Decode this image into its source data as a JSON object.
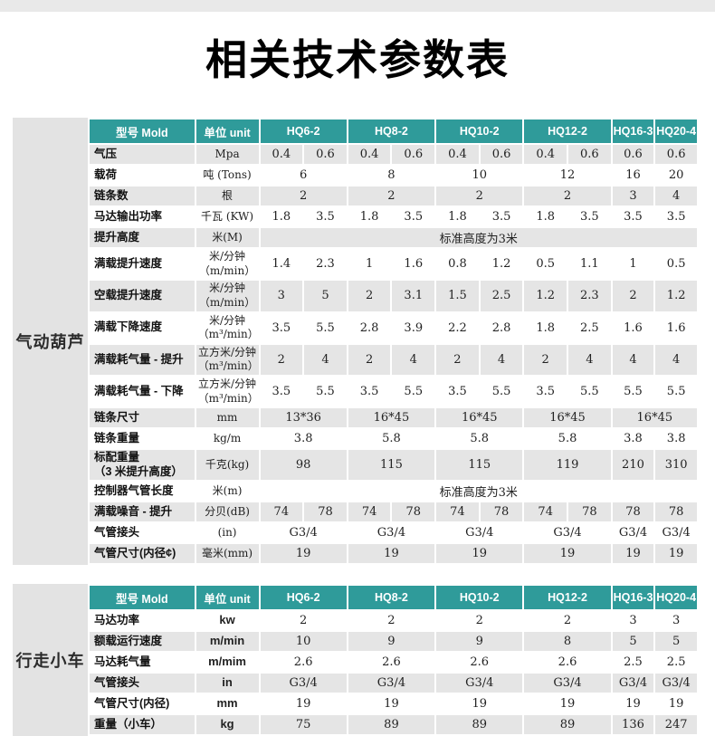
{
  "page": {
    "title": "相关技术参数表"
  },
  "colors": {
    "header_teal": "#2f9b9a",
    "stripe_gray": "#e5e5e5",
    "sidebar_gray": "#e3e3e3",
    "topbar_gray": "#e9e9e9"
  },
  "tables": [
    {
      "category": "气动葫芦",
      "header": {
        "model_col": "型号  Mold",
        "unit_col": "单位 unit",
        "models": [
          "HQ6-2",
          "HQ8-2",
          "HQ10-2",
          "HQ12-2",
          "HQ16-3",
          "HQ20-4"
        ]
      },
      "rows": [
        {
          "label": "气压",
          "unit": "Mpa",
          "cells": [
            {
              "t": "0.4"
            },
            {
              "t": "0.6"
            },
            {
              "t": "0.4"
            },
            {
              "t": "0.6"
            },
            {
              "t": "0.4"
            },
            {
              "t": "0.6"
            },
            {
              "t": "0.4"
            },
            {
              "t": "0.6"
            },
            {
              "t": "0.6"
            },
            {
              "t": "0.6"
            }
          ]
        },
        {
          "label": "载荷",
          "unit": "吨 (Tons)",
          "cells": [
            {
              "t": "6",
              "c": 2
            },
            {
              "t": "8",
              "c": 2
            },
            {
              "t": "10",
              "c": 2
            },
            {
              "t": "12",
              "c": 2
            },
            {
              "t": "16"
            },
            {
              "t": "20"
            }
          ]
        },
        {
          "label": "链条数",
          "unit": "根",
          "cells": [
            {
              "t": "2",
              "c": 2
            },
            {
              "t": "2",
              "c": 2
            },
            {
              "t": "2",
              "c": 2
            },
            {
              "t": "2",
              "c": 2
            },
            {
              "t": "3"
            },
            {
              "t": "4"
            }
          ]
        },
        {
          "label": "马达输出功率",
          "unit": "千瓦 (KW)",
          "cells": [
            {
              "t": "1.8"
            },
            {
              "t": "3.5"
            },
            {
              "t": "1.8"
            },
            {
              "t": "3.5"
            },
            {
              "t": "1.8"
            },
            {
              "t": "3.5"
            },
            {
              "t": "1.8"
            },
            {
              "t": "3.5"
            },
            {
              "t": "3.5"
            },
            {
              "t": "3.5"
            }
          ]
        },
        {
          "label": "提升高度",
          "unit": "米(M)",
          "cells": [
            {
              "t": "标准高度为3米",
              "c": 10
            }
          ]
        },
        {
          "label": "满载提升速度",
          "unit": "米/分钟\n（m/min）",
          "cells": [
            {
              "t": "1.4"
            },
            {
              "t": "2.3"
            },
            {
              "t": "1"
            },
            {
              "t": "1.6"
            },
            {
              "t": "0.8"
            },
            {
              "t": "1.2"
            },
            {
              "t": "0.5"
            },
            {
              "t": "1.1"
            },
            {
              "t": "1"
            },
            {
              "t": "0.5"
            }
          ]
        },
        {
          "label": "空载提升速度",
          "unit": "米/分钟\n（m/min）",
          "cells": [
            {
              "t": "3"
            },
            {
              "t": "5"
            },
            {
              "t": "2"
            },
            {
              "t": "3.1"
            },
            {
              "t": "1.5"
            },
            {
              "t": "2.5"
            },
            {
              "t": "1.2"
            },
            {
              "t": "2.3"
            },
            {
              "t": "2"
            },
            {
              "t": "1.2"
            }
          ]
        },
        {
          "label": "满载下降速度",
          "unit": "米/分钟\n（m³/min）",
          "cells": [
            {
              "t": "3.5"
            },
            {
              "t": "5.5"
            },
            {
              "t": "2.8"
            },
            {
              "t": "3.9"
            },
            {
              "t": "2.2"
            },
            {
              "t": "2.8"
            },
            {
              "t": "1.8"
            },
            {
              "t": "2.5"
            },
            {
              "t": "1.6"
            },
            {
              "t": "1.6"
            }
          ]
        },
        {
          "label": "满载耗气量 - 提升",
          "unit": "立方米/分钟\n（m³/min）",
          "cells": [
            {
              "t": "2"
            },
            {
              "t": "4"
            },
            {
              "t": "2"
            },
            {
              "t": "4"
            },
            {
              "t": "2"
            },
            {
              "t": "4"
            },
            {
              "t": "2"
            },
            {
              "t": "4"
            },
            {
              "t": "4"
            },
            {
              "t": "4"
            }
          ]
        },
        {
          "label": "满载耗气量 - 下降",
          "unit": "立方米/分钟\n（m³/min）",
          "cells": [
            {
              "t": "3.5"
            },
            {
              "t": "5.5"
            },
            {
              "t": "3.5"
            },
            {
              "t": "5.5"
            },
            {
              "t": "3.5"
            },
            {
              "t": "5.5"
            },
            {
              "t": "3.5"
            },
            {
              "t": "5.5"
            },
            {
              "t": "5.5"
            },
            {
              "t": "5.5"
            }
          ]
        },
        {
          "label": "链条尺寸",
          "unit": "mm",
          "cells": [
            {
              "t": "13*36",
              "c": 2
            },
            {
              "t": "16*45",
              "c": 2
            },
            {
              "t": "16*45",
              "c": 2
            },
            {
              "t": "16*45",
              "c": 2
            },
            {
              "t": "16*45",
              "c": 2
            }
          ]
        },
        {
          "label": "链条重量",
          "unit": "kg/m",
          "cells": [
            {
              "t": "3.8",
              "c": 2
            },
            {
              "t": "5.8",
              "c": 2
            },
            {
              "t": "5.8",
              "c": 2
            },
            {
              "t": "5.8",
              "c": 2
            },
            {
              "t": "3.8"
            },
            {
              "t": "3.8"
            }
          ]
        },
        {
          "label": "标配重量\n（3 米提升高度）",
          "unit": "千克(kg)",
          "cells": [
            {
              "t": "98",
              "c": 2
            },
            {
              "t": "115",
              "c": 2
            },
            {
              "t": "115",
              "c": 2
            },
            {
              "t": "119",
              "c": 2
            },
            {
              "t": "210"
            },
            {
              "t": "310"
            }
          ]
        },
        {
          "label": "控制器气管长度",
          "unit": "米(m)",
          "cells": [
            {
              "t": "标准高度为3米",
              "c": 10
            }
          ]
        },
        {
          "label": "满载噪音 - 提升",
          "unit": "分贝(dB)",
          "cells": [
            {
              "t": "74"
            },
            {
              "t": "78"
            },
            {
              "t": "74"
            },
            {
              "t": "78"
            },
            {
              "t": "74"
            },
            {
              "t": "78"
            },
            {
              "t": "74"
            },
            {
              "t": "78"
            },
            {
              "t": "78"
            },
            {
              "t": "78"
            }
          ]
        },
        {
          "label": "气管接头",
          "unit": "(in)",
          "cells": [
            {
              "t": "G3/4",
              "c": 2
            },
            {
              "t": "G3/4",
              "c": 2
            },
            {
              "t": "G3/4",
              "c": 2
            },
            {
              "t": "G3/4",
              "c": 2
            },
            {
              "t": "G3/4"
            },
            {
              "t": "G3/4"
            }
          ]
        },
        {
          "label": "气管尺寸(内径¢)",
          "unit": "毫米(mm)",
          "cells": [
            {
              "t": "19",
              "c": 2
            },
            {
              "t": "19",
              "c": 2
            },
            {
              "t": "19",
              "c": 2
            },
            {
              "t": "19",
              "c": 2
            },
            {
              "t": "19"
            },
            {
              "t": "19"
            }
          ]
        }
      ]
    },
    {
      "category": "行走小车",
      "header": {
        "model_col": "型号  Mold",
        "unit_col": "单位 unit",
        "models": [
          "HQ6-2",
          "HQ8-2",
          "HQ10-2",
          "HQ12-2",
          "HQ16-3",
          "HQ20-4"
        ]
      },
      "rows": [
        {
          "label": "马达功率",
          "unit": "kw",
          "cells": [
            {
              "t": "2",
              "c": 2
            },
            {
              "t": "2",
              "c": 2
            },
            {
              "t": "2",
              "c": 2
            },
            {
              "t": "2",
              "c": 2
            },
            {
              "t": "3"
            },
            {
              "t": "3"
            }
          ]
        },
        {
          "label": "额载运行速度",
          "unit": "m/min",
          "cells": [
            {
              "t": "10",
              "c": 2
            },
            {
              "t": "9",
              "c": 2
            },
            {
              "t": "9",
              "c": 2
            },
            {
              "t": "8",
              "c": 2
            },
            {
              "t": "5"
            },
            {
              "t": "5"
            }
          ]
        },
        {
          "label": "马达耗气量",
          "unit": "m/mim",
          "cells": [
            {
              "t": "2.6",
              "c": 2
            },
            {
              "t": "2.6",
              "c": 2
            },
            {
              "t": "2.6",
              "c": 2
            },
            {
              "t": "2.6",
              "c": 2
            },
            {
              "t": "2.5"
            },
            {
              "t": "2.5"
            }
          ]
        },
        {
          "label": "气管接头",
          "unit": "in",
          "cells": [
            {
              "t": "G3/4",
              "c": 2
            },
            {
              "t": "G3/4",
              "c": 2
            },
            {
              "t": "G3/4",
              "c": 2
            },
            {
              "t": "G3/4",
              "c": 2
            },
            {
              "t": "G3/4"
            },
            {
              "t": "G3/4"
            }
          ]
        },
        {
          "label": "气管尺寸(内径)",
          "unit": "mm",
          "cells": [
            {
              "t": "19",
              "c": 2
            },
            {
              "t": "19",
              "c": 2
            },
            {
              "t": "19",
              "c": 2
            },
            {
              "t": "19",
              "c": 2
            },
            {
              "t": "19"
            },
            {
              "t": "19"
            }
          ]
        },
        {
          "label": "重量（小车）",
          "unit": "kg",
          "cells": [
            {
              "t": "75",
              "c": 2
            },
            {
              "t": "89",
              "c": 2
            },
            {
              "t": "89",
              "c": 2
            },
            {
              "t": "89",
              "c": 2
            },
            {
              "t": "136"
            },
            {
              "t": "247"
            }
          ]
        }
      ]
    }
  ]
}
